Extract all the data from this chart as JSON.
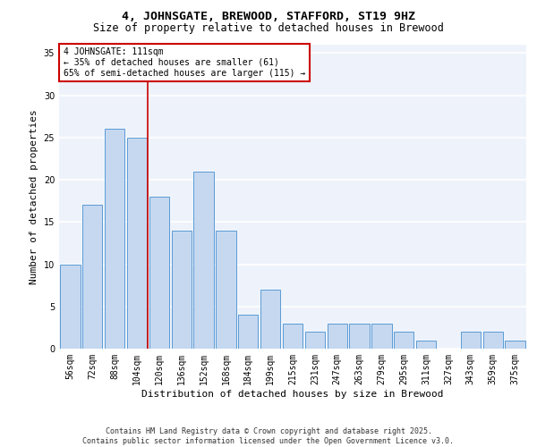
{
  "title1": "4, JOHNSGATE, BREWOOD, STAFFORD, ST19 9HZ",
  "title2": "Size of property relative to detached houses in Brewood",
  "xlabel": "Distribution of detached houses by size in Brewood",
  "ylabel": "Number of detached properties",
  "categories": [
    "56sqm",
    "72sqm",
    "88sqm",
    "104sqm",
    "120sqm",
    "136sqm",
    "152sqm",
    "168sqm",
    "184sqm",
    "199sqm",
    "215sqm",
    "231sqm",
    "247sqm",
    "263sqm",
    "279sqm",
    "295sqm",
    "311sqm",
    "327sqm",
    "343sqm",
    "359sqm",
    "375sqm"
  ],
  "values": [
    10,
    17,
    26,
    25,
    18,
    14,
    21,
    14,
    4,
    7,
    3,
    2,
    3,
    3,
    3,
    2,
    1,
    0,
    2,
    2,
    1
  ],
  "bar_color": "#c5d8f0",
  "bar_edge_color": "#5b9bd5",
  "background_color": "#eef3fb",
  "grid_color": "#ffffff",
  "annotation_box_text": "4 JOHNSGATE: 111sqm\n← 35% of detached houses are smaller (61)\n65% of semi-detached houses are larger (115) →",
  "annotation_box_color": "#ffffff",
  "annotation_box_edge": "#cc0000",
  "vline_x": 3.5,
  "vline_color": "#cc0000",
  "ylim": [
    0,
    36
  ],
  "yticks": [
    0,
    5,
    10,
    15,
    20,
    25,
    30,
    35
  ],
  "footer": "Contains HM Land Registry data © Crown copyright and database right 2025.\nContains public sector information licensed under the Open Government Licence v3.0.",
  "title1_fontsize": 9.5,
  "title2_fontsize": 8.5,
  "xlabel_fontsize": 8,
  "ylabel_fontsize": 8,
  "tick_fontsize": 7,
  "annotation_fontsize": 7,
  "footer_fontsize": 6
}
